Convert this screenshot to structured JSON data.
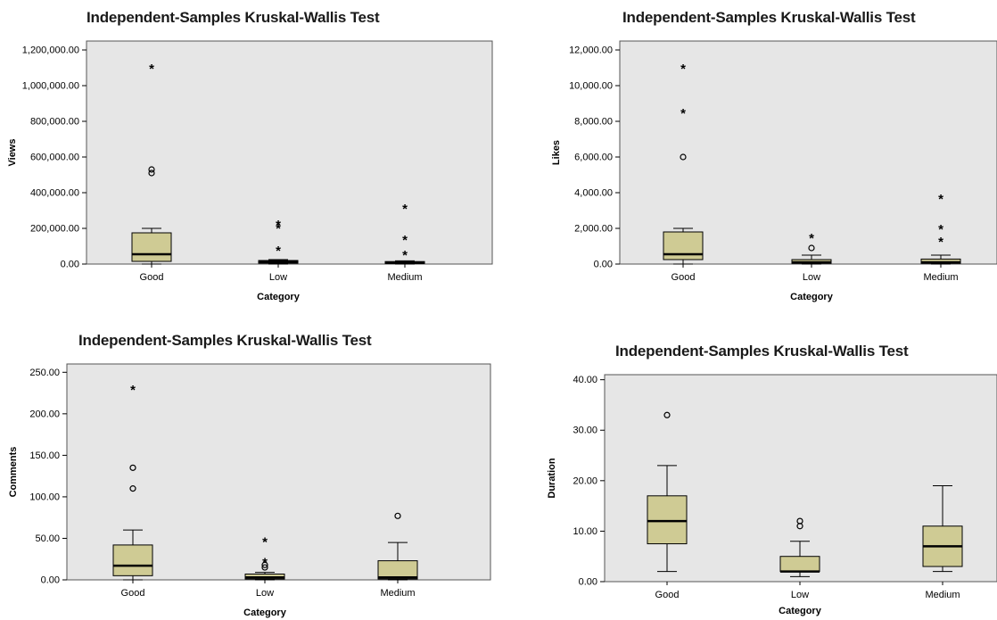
{
  "colors": {
    "plot_bg": "#e6e6e6",
    "box_fill": "#cfcb94",
    "line": "#000000"
  },
  "chart_data": [
    {
      "type": "boxplot",
      "title": "Independent-Samples Kruskal-Wallis Test",
      "xlabel": "Category",
      "ylabel": "Views",
      "ylim": [
        0,
        1250000
      ],
      "yticks": [
        0,
        200000,
        400000,
        600000,
        800000,
        1000000,
        1200000
      ],
      "ytick_labels": [
        "0.00",
        "200,000.00",
        "400,000.00",
        "600,000.00",
        "800,000.00",
        "1,000,000.00",
        "1,200,000.00"
      ],
      "categories": [
        "Good",
        "Low",
        "Medium"
      ],
      "boxes": [
        {
          "category": "Good",
          "whisker_low": 0,
          "q1": 15000,
          "median": 55000,
          "q3": 175000,
          "whisker_high": 200000,
          "outliers": [
            {
              "value": 1100000,
              "marker": "star"
            },
            {
              "value": 530000,
              "marker": "circle"
            },
            {
              "value": 510000,
              "marker": "circle"
            }
          ]
        },
        {
          "category": "Low",
          "whisker_low": 0,
          "q1": 5000,
          "median": 12000,
          "q3": 20000,
          "whisker_high": 25000,
          "outliers": [
            {
              "value": 225000,
              "marker": "star"
            },
            {
              "value": 205000,
              "marker": "star"
            },
            {
              "value": 80000,
              "marker": "star"
            }
          ]
        },
        {
          "category": "Medium",
          "whisker_low": 0,
          "q1": 3000,
          "median": 8000,
          "q3": 14000,
          "whisker_high": 18000,
          "outliers": [
            {
              "value": 315000,
              "marker": "star"
            },
            {
              "value": 140000,
              "marker": "star"
            },
            {
              "value": 55000,
              "marker": "star"
            }
          ]
        }
      ]
    },
    {
      "type": "boxplot",
      "title": "Independent-Samples Kruskal-Wallis Test",
      "xlabel": "Category",
      "ylabel": "Likes",
      "ylim": [
        0,
        12500
      ],
      "yticks": [
        0,
        2000,
        4000,
        6000,
        8000,
        10000,
        12000
      ],
      "ytick_labels": [
        "0.00",
        "2,000.00",
        "4,000.00",
        "6,000.00",
        "8,000.00",
        "10,000.00",
        "12,000.00"
      ],
      "categories": [
        "Good",
        "Low",
        "Medium"
      ],
      "boxes": [
        {
          "category": "Good",
          "whisker_low": 0,
          "q1": 250,
          "median": 550,
          "q3": 1800,
          "whisker_high": 2000,
          "outliers": [
            {
              "value": 11000,
              "marker": "star"
            },
            {
              "value": 8500,
              "marker": "star"
            },
            {
              "value": 6000,
              "marker": "circle"
            }
          ]
        },
        {
          "category": "Low",
          "whisker_low": 0,
          "q1": 40,
          "median": 100,
          "q3": 250,
          "whisker_high": 500,
          "outliers": [
            {
              "value": 1500,
              "marker": "star"
            },
            {
              "value": 900,
              "marker": "circle"
            }
          ]
        },
        {
          "category": "Medium",
          "whisker_low": 0,
          "q1": 40,
          "median": 100,
          "q3": 280,
          "whisker_high": 500,
          "outliers": [
            {
              "value": 3700,
              "marker": "star"
            },
            {
              "value": 2000,
              "marker": "star"
            },
            {
              "value": 1300,
              "marker": "star"
            }
          ]
        }
      ]
    },
    {
      "type": "boxplot",
      "title": "Independent-Samples Kruskal-Wallis Test",
      "xlabel": "Category",
      "ylabel": "Comments",
      "ylim": [
        0,
        260
      ],
      "yticks": [
        0,
        50,
        100,
        150,
        200,
        250
      ],
      "ytick_labels": [
        "0.00",
        "50.00",
        "100.00",
        "150.00",
        "200.00",
        "250.00"
      ],
      "categories": [
        "Good",
        "Low",
        "Medium"
      ],
      "boxes": [
        {
          "category": "Good",
          "whisker_low": 0,
          "q1": 5,
          "median": 17,
          "q3": 42,
          "whisker_high": 60,
          "outliers": [
            {
              "value": 230,
              "marker": "star"
            },
            {
              "value": 135,
              "marker": "circle"
            },
            {
              "value": 110,
              "marker": "circle"
            }
          ]
        },
        {
          "category": "Low",
          "whisker_low": 0,
          "q1": 1,
          "median": 3,
          "q3": 7,
          "whisker_high": 9,
          "outliers": [
            {
              "value": 47,
              "marker": "star"
            },
            {
              "value": 22,
              "marker": "star"
            },
            {
              "value": 18,
              "marker": "circle"
            },
            {
              "value": 15,
              "marker": "circle"
            }
          ]
        },
        {
          "category": "Medium",
          "whisker_low": 0,
          "q1": 1,
          "median": 3,
          "q3": 23,
          "whisker_high": 45,
          "outliers": [
            {
              "value": 77,
              "marker": "circle"
            }
          ]
        }
      ]
    },
    {
      "type": "boxplot",
      "title": "Independent-Samples Kruskal-Wallis Test",
      "xlabel": "Category",
      "ylabel": "Duration",
      "ylim": [
        0,
        41
      ],
      "yticks": [
        0,
        10,
        20,
        30,
        40
      ],
      "ytick_labels": [
        "0.00",
        "10.00",
        "20.00",
        "30.00",
        "40.00"
      ],
      "categories": [
        "Good",
        "Low",
        "Medium"
      ],
      "boxes": [
        {
          "category": "Good",
          "whisker_low": 2,
          "q1": 7.5,
          "median": 12,
          "q3": 17,
          "whisker_high": 23,
          "outliers": [
            {
              "value": 33,
              "marker": "circle"
            }
          ]
        },
        {
          "category": "Low",
          "whisker_low": 1,
          "q1": 2,
          "median": 2,
          "q3": 5,
          "whisker_high": 8,
          "outliers": [
            {
              "value": 12,
              "marker": "circle"
            },
            {
              "value": 11,
              "marker": "circle"
            }
          ]
        },
        {
          "category": "Medium",
          "whisker_low": 2,
          "q1": 3,
          "median": 7,
          "q3": 11,
          "whisker_high": 19,
          "outliers": []
        }
      ]
    }
  ]
}
